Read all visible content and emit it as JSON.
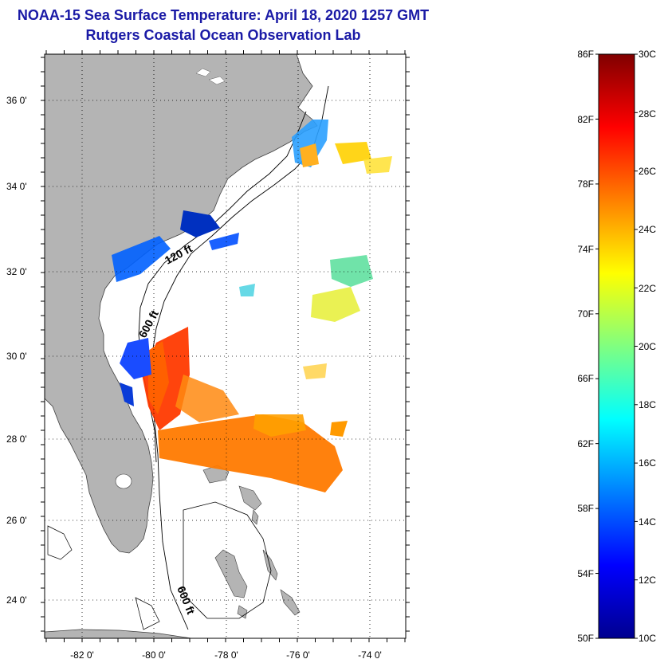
{
  "title": "NOAA-15 Sea Surface Temperature:  April 18, 2020 1257 GMT",
  "subtitle": "Rutgers Coastal Ocean Observation Lab",
  "map": {
    "lat_labels": [
      "36 0'",
      "34 0'",
      "32 0'",
      "30 0'",
      "28 0'",
      "26 0'",
      "24 0'"
    ],
    "lon_labels": [
      "-82 0'",
      "-80 0'",
      "-78 0'",
      "-76 0'",
      "-74 0'"
    ],
    "isobath_labels": [
      "120 ft",
      "600 ft",
      "600 ft"
    ],
    "land_color": "#b4b4b4"
  },
  "colorbar": {
    "f_labels": [
      "86F",
      "82F",
      "78F",
      "74F",
      "70F",
      "66F",
      "62F",
      "58F",
      "54F",
      "50F"
    ],
    "c_labels": [
      "30C",
      "28C",
      "26C",
      "24C",
      "22C",
      "20C",
      "18C",
      "16C",
      "14C",
      "12C",
      "10C"
    ],
    "colormap": [
      "#00008f",
      "#0000ff",
      "#0080ff",
      "#00ffff",
      "#80ff80",
      "#ffff00",
      "#ff8000",
      "#ff0000",
      "#800000"
    ]
  }
}
